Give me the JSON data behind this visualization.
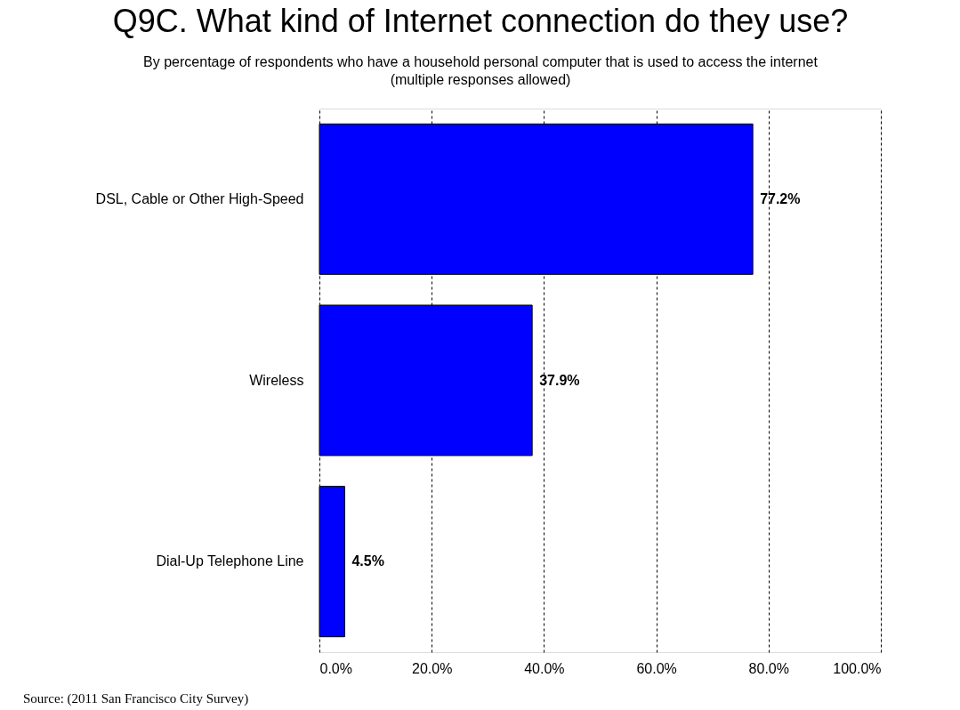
{
  "chart_data": {
    "type": "bar",
    "orientation": "horizontal",
    "title": "Q9C. What kind of Internet connection do they use?",
    "subtitle": "By percentage of respondents who have a household personal computer that is used to access the internet\n(multiple responses allowed)",
    "categories": [
      "DSL, Cable or Other High-Speed",
      "Wireless",
      "Dial-Up Telephone Line"
    ],
    "values": [
      77.2,
      37.9,
      4.5
    ],
    "value_labels": [
      "77.2%",
      "37.9%",
      "4.5%"
    ],
    "color": "#0000ff",
    "xlim": [
      0,
      100
    ],
    "xticks": [
      {
        "value": 0,
        "label": "0.0%"
      },
      {
        "value": 20,
        "label": "20.0%"
      },
      {
        "value": 40,
        "label": "40.0%"
      },
      {
        "value": 60,
        "label": "60.0%"
      },
      {
        "value": 80,
        "label": "80.0%"
      },
      {
        "value": 100,
        "label": "100.0%"
      }
    ],
    "grid": "x",
    "annotations": [
      "Source: (2011 San Francisco City Survey)"
    ]
  }
}
